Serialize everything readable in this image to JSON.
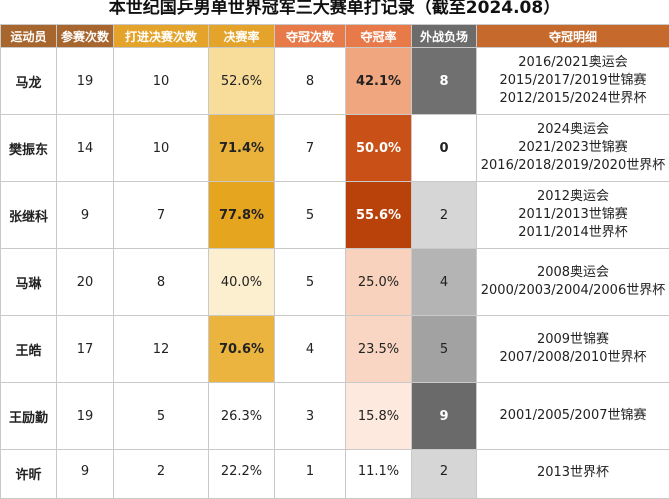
{
  "title": "本世纪国乒男单世界冠军三大赛单打记录（截至2024.08）",
  "colors": {
    "header_name": "#a8662f",
    "header_players": "#a8662f",
    "header_final_count": "#e4a32a",
    "header_final_rate": "#e4a32a",
    "header_champ_count": "#e87a4a",
    "header_champ_rate": "#e87a4a",
    "header_foreign": "#6c6c6c",
    "header_details": "#c56a2c"
  },
  "headers": {
    "athlete": "运动员",
    "appearances": "参赛次数",
    "finals": "打进决赛次数",
    "final_rate": "决赛率",
    "titles": "夺冠次数",
    "title_rate": "夺冠率",
    "foreign_losses": "外战负场",
    "title_details": "夺冠明细"
  },
  "rows": [
    {
      "name": "马龙",
      "appearances": "19",
      "finals": "10",
      "final_rate": "52.6%",
      "final_rate_bg": "#f7dc9a",
      "final_rate_bold": false,
      "titles": "8",
      "title_rate": "42.1%",
      "title_rate_bg": "#f0a77f",
      "title_rate_color": "#222",
      "title_rate_bold": true,
      "foreign_losses": "8",
      "foreign_bg": "#707070",
      "foreign_color": "#ffffff",
      "foreign_bold": true,
      "details": [
        "2016/2021奥运会",
        "2015/2017/2019世锦赛",
        "2012/2015/2024世界杯"
      ]
    },
    {
      "name": "樊振东",
      "appearances": "14",
      "finals": "10",
      "final_rate": "71.4%",
      "final_rate_bg": "#eab23a",
      "final_rate_bold": true,
      "titles": "7",
      "title_rate": "50.0%",
      "title_rate_bg": "#c95016",
      "title_rate_color": "#ffffff",
      "title_rate_bold": true,
      "foreign_losses": "0",
      "foreign_bg": "#ffffff",
      "foreign_color": "#222222",
      "foreign_bold": true,
      "details": [
        "2024奥运会",
        "2021/2023世锦赛",
        "2016/2018/2019/2020世界杯"
      ]
    },
    {
      "name": "张继科",
      "appearances": "9",
      "finals": "7",
      "final_rate": "77.8%",
      "final_rate_bg": "#e5a51f",
      "final_rate_bold": true,
      "titles": "5",
      "title_rate": "55.6%",
      "title_rate_bg": "#b9420b",
      "title_rate_color": "#ffffff",
      "title_rate_bold": true,
      "foreign_losses": "2",
      "foreign_bg": "#d6d6d6",
      "foreign_color": "#222222",
      "foreign_bold": false,
      "details": [
        "2012奥运会",
        "2011/2013世锦赛",
        "2011/2014世界杯"
      ]
    },
    {
      "name": "马琳",
      "appearances": "20",
      "finals": "8",
      "final_rate": "40.0%",
      "final_rate_bg": "#fbefcf",
      "final_rate_bold": false,
      "titles": "5",
      "title_rate": "25.0%",
      "title_rate_bg": "#f8d2bd",
      "title_rate_color": "#222",
      "title_rate_bold": false,
      "foreign_losses": "4",
      "foreign_bg": "#b4b4b4",
      "foreign_color": "#222222",
      "foreign_bold": false,
      "details": [
        "2008奥运会",
        "2000/2003/2004/2006世界杯"
      ]
    },
    {
      "name": "王皓",
      "appearances": "17",
      "finals": "12",
      "final_rate": "70.6%",
      "final_rate_bg": "#ebb43e",
      "final_rate_bold": true,
      "titles": "4",
      "title_rate": "23.5%",
      "title_rate_bg": "#f9d6c3",
      "title_rate_color": "#222",
      "title_rate_bold": false,
      "foreign_losses": "5",
      "foreign_bg": "#a2a2a2",
      "foreign_color": "#222222",
      "foreign_bold": false,
      "details": [
        "2009世锦赛",
        "2007/2008/2010世界杯"
      ]
    },
    {
      "name": "王励勤",
      "appearances": "19",
      "finals": "5",
      "final_rate": "26.3%",
      "final_rate_bg": "#ffffff",
      "final_rate_bold": false,
      "titles": "3",
      "title_rate": "15.8%",
      "title_rate_bg": "#fde9de",
      "title_rate_color": "#222",
      "title_rate_bold": false,
      "foreign_losses": "9",
      "foreign_bg": "#6a6a6a",
      "foreign_color": "#ffffff",
      "foreign_bold": true,
      "details": [
        "2001/2005/2007世锦赛"
      ]
    },
    {
      "name": "许昕",
      "appearances": "9",
      "finals": "2",
      "final_rate": "22.2%",
      "final_rate_bg": "#ffffff",
      "final_rate_bold": false,
      "titles": "1",
      "title_rate": "11.1%",
      "title_rate_bg": "#ffffff",
      "title_rate_color": "#222",
      "title_rate_bold": false,
      "foreign_losses": "2",
      "foreign_bg": "#d6d6d6",
      "foreign_color": "#222222",
      "foreign_bold": false,
      "details": [
        "2013世界杯"
      ]
    }
  ]
}
